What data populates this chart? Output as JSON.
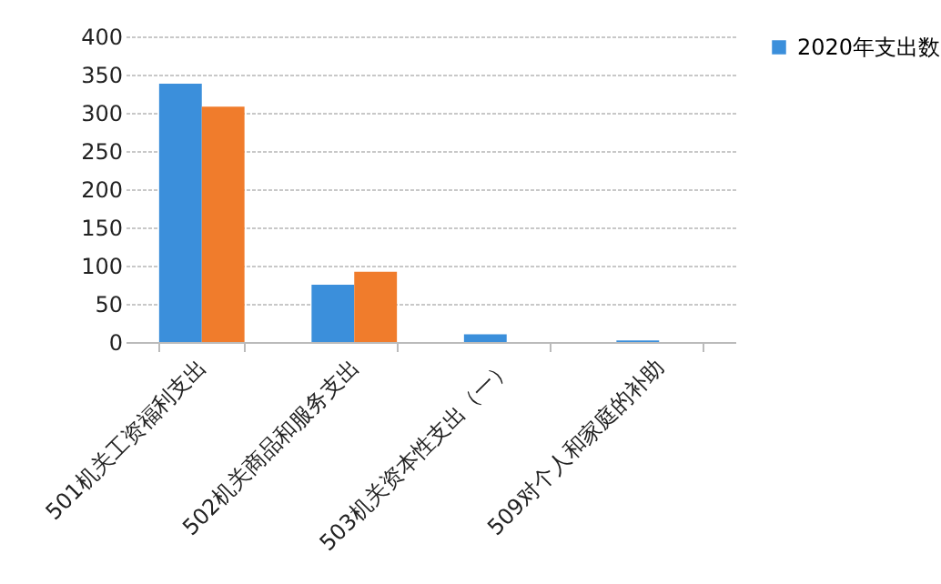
{
  "chart_data": {
    "type": "bar",
    "categories": [
      "501机关工资福利支出",
      "502机关商品和服务支出",
      "503机关资本性支出（一）",
      "509对个人和家庭的补助"
    ],
    "series": [
      {
        "name": "2020年支出数",
        "color": "#3b8fdb",
        "values": [
          338,
          75,
          10,
          2
        ]
      },
      {
        "color": "#f07c2c",
        "values": [
          308,
          92,
          null,
          null
        ]
      }
    ],
    "ylim": [
      0,
      400
    ],
    "yticks": [
      0,
      50,
      100,
      150,
      200,
      250,
      300,
      350,
      400
    ],
    "grid": "y",
    "legend": "right"
  }
}
